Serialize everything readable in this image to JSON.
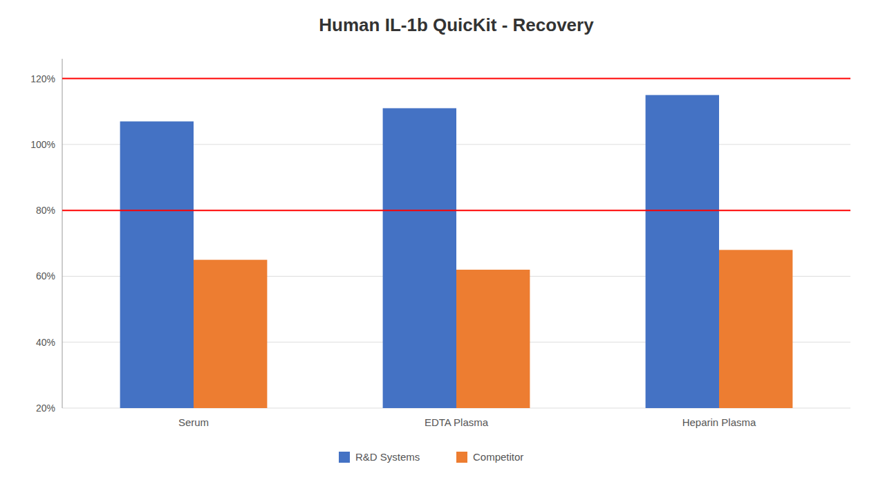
{
  "chart_data": {
    "type": "bar",
    "title": "Human IL-1b QuicKit - Recovery",
    "categories": [
      "Serum",
      "EDTA Plasma",
      "Heparin Plasma"
    ],
    "series": [
      {
        "name": "R&D Systems",
        "color": "#4472C4",
        "values": [
          1.07,
          1.11,
          1.15
        ]
      },
      {
        "name": "Competitor",
        "color": "#ED7D31",
        "values": [
          0.65,
          0.62,
          0.68
        ]
      }
    ],
    "reference_lines": [
      {
        "value": 1.2,
        "color": "#FF0000"
      },
      {
        "value": 0.8,
        "color": "#FF0000"
      }
    ],
    "ylim": [
      0.2,
      1.26
    ],
    "yticks": [
      {
        "value": 0.2,
        "label": "20%"
      },
      {
        "value": 0.4,
        "label": "40%"
      },
      {
        "value": 0.6,
        "label": "60%"
      },
      {
        "value": 0.8,
        "label": "80%"
      },
      {
        "value": 1.0,
        "label": "100%"
      },
      {
        "value": 1.2,
        "label": "120%"
      }
    ],
    "grid": true,
    "legend": "bottom"
  }
}
